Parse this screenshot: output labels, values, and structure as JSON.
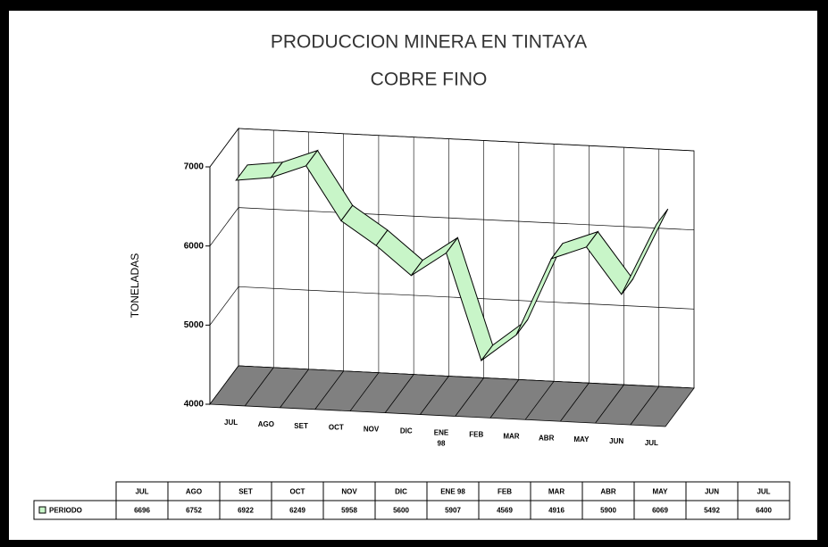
{
  "chart_data": {
    "type": "line3d",
    "title": "PRODUCCION MINERA EN TINTAYA",
    "subtitle": "COBRE FINO",
    "y_label": "TONELADAS",
    "categories": [
      "JUL",
      "AGO",
      "SET",
      "OCT",
      "NOV",
      "DIC",
      "ENE 98",
      "FEB",
      "MAR",
      "ABR",
      "MAY",
      "JUN",
      "JUL"
    ],
    "series": [
      {
        "name": "PERIODO",
        "color": "#c8f5c8",
        "values": [
          6696,
          6752,
          6922,
          6249,
          5958,
          5600,
          5907,
          4569,
          4916,
          5900,
          6069,
          5492,
          6400
        ]
      }
    ],
    "ylim": [
      4000,
      7000
    ],
    "yticks": [
      4000,
      5000,
      6000,
      7000
    ],
    "grid": true,
    "floor_color": "#808080"
  }
}
